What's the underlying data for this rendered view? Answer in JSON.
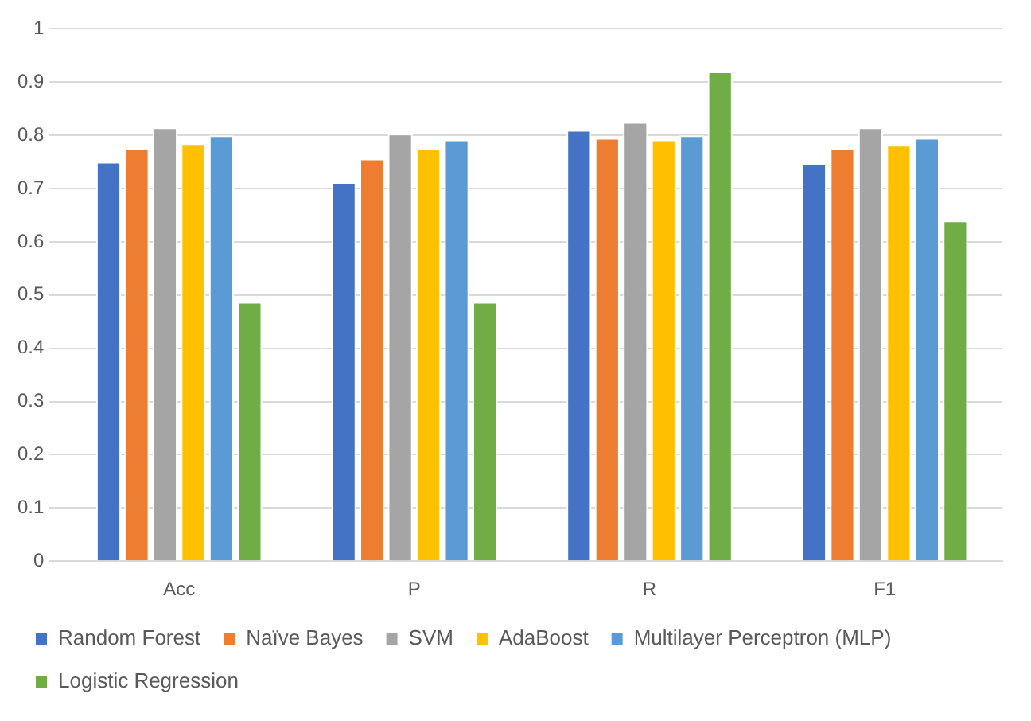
{
  "chart_data": {
    "type": "bar",
    "categories": [
      "Acc",
      "P",
      "R",
      "F1"
    ],
    "series": [
      {
        "name": "Random Forest",
        "color": "#4472c4",
        "values": [
          0.75,
          0.712,
          0.81,
          0.748
        ]
      },
      {
        "name": "Naïve Bayes",
        "color": "#ed7d31",
        "values": [
          0.775,
          0.756,
          0.795,
          0.775
        ]
      },
      {
        "name": "SVM",
        "color": "#a5a5a5",
        "values": [
          0.815,
          0.803,
          0.825,
          0.815
        ]
      },
      {
        "name": "AdaBoost",
        "color": "#ffc000",
        "values": [
          0.785,
          0.775,
          0.792,
          0.782
        ]
      },
      {
        "name": "Multilayer Perceptron (MLP)",
        "color": "#5b9bd5",
        "values": [
          0.8,
          0.792,
          0.8,
          0.795
        ]
      },
      {
        "name": "Logistic Regression",
        "color": "#70ad47",
        "values": [
          0.487,
          0.487,
          0.92,
          0.64
        ]
      }
    ],
    "ylim": [
      0,
      1
    ],
    "yticks": [
      0,
      0.1,
      0.2,
      0.3,
      0.4,
      0.5,
      0.6,
      0.7,
      0.8,
      0.9,
      1
    ],
    "grid": "y",
    "legend": "bottom"
  }
}
